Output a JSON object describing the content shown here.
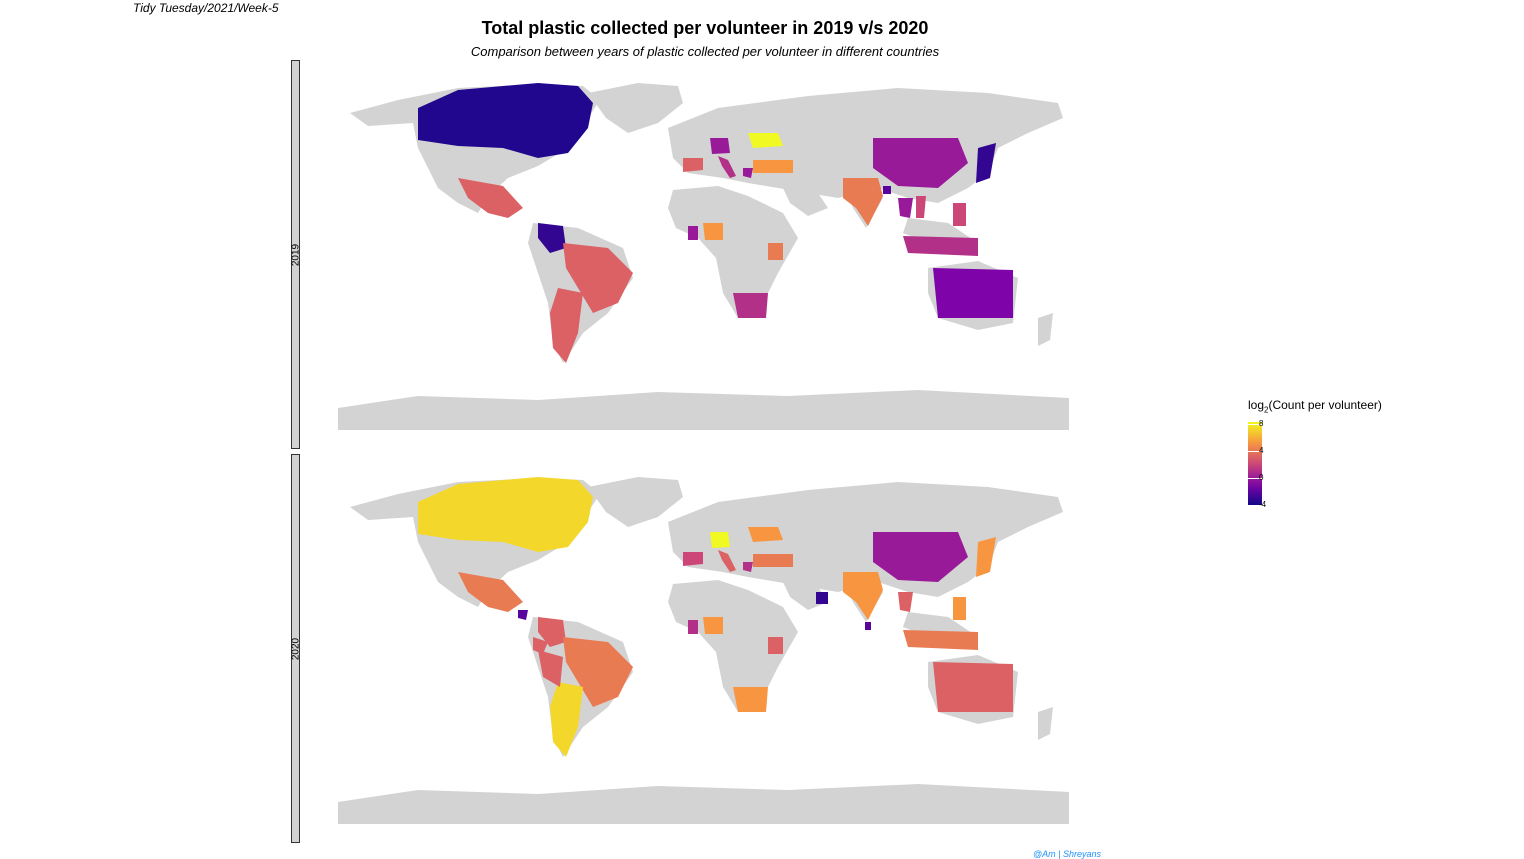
{
  "header": {
    "tag": "Tidy Tuesday/2021/Week-5",
    "title": "Total plastic collected per volunteer in 2019 v/s 2020",
    "subtitle": "Comparison between years of plastic collected per volunteer in different countries"
  },
  "facets": [
    {
      "label": "2019"
    },
    {
      "label": "2020"
    }
  ],
  "legend": {
    "title_prefix": "log",
    "title_sub": "2",
    "title_suffix": "(Count per volunteer)",
    "ticks": [
      "8",
      "4",
      "0",
      "-4"
    ],
    "scale": "plasma",
    "min": -4,
    "max": 8
  },
  "credit": "@Am  |  Shreyans",
  "colors": {
    "land": "#d3d3d3",
    "background": "#ffffff",
    "strip": "#d3d3d3",
    "credit": "#1e90ff"
  },
  "map_data": {
    "value_scale": "log2(Count per volunteer)",
    "2019": {
      "Canada": -3.5,
      "Japan": -3,
      "Colombia": -3,
      "Australia": -1,
      "China": 0,
      "Philippines": 2,
      "Indonesia": 1,
      "India": 4,
      "Mexico": 3,
      "Brazil": 3,
      "Argentina": 3,
      "South Africa": 1,
      "Kenya": 4,
      "Spain": 3,
      "Italy": 1,
      "Germany": 0,
      "Turkey": 5,
      "Greece": 0,
      "Ukraine": 8,
      "Nigeria": 5,
      "Ghana": 0,
      "Thailand": 0,
      "Bangladesh": -2,
      "Vietnam": 2
    },
    "2020": {
      "Canada": 7,
      "Japan": 5,
      "Colombia": 3,
      "Australia": 3,
      "China": 0,
      "Philippines": 5,
      "Indonesia": 4,
      "India": 5,
      "Mexico": 4,
      "Brazil": 4,
      "Argentina": 7,
      "South Africa": 5,
      "Kenya": 3,
      "Spain": 2,
      "Italy": 3,
      "Germany": 8,
      "Turkey": 4,
      "Greece": 1,
      "Ukraine": 5,
      "Nigeria": 5,
      "Ghana": 1,
      "Thailand": 3,
      "Ecuador": 3,
      "Peru": 3,
      "Nicaragua": -2,
      "Oman": -3,
      "Sri Lanka": -2
    }
  }
}
